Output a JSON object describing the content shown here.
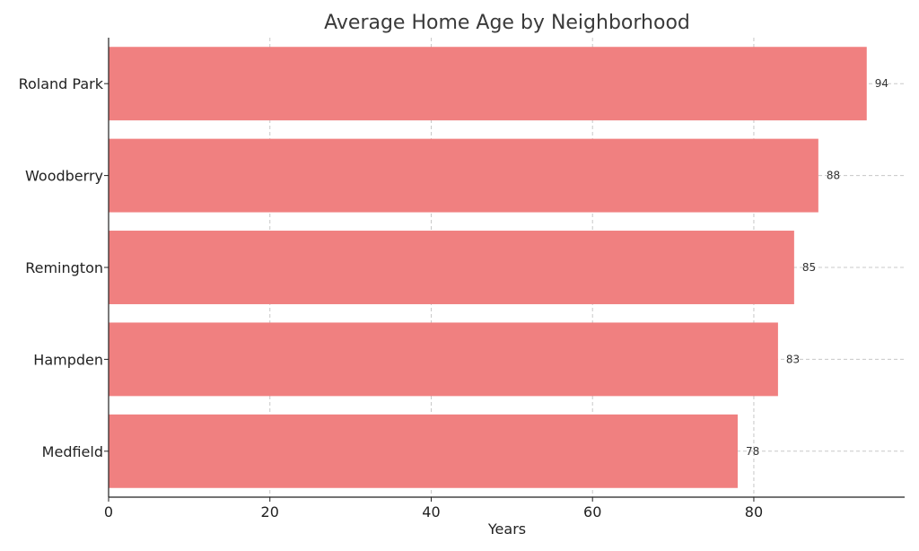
{
  "chart_data": {
    "type": "bar",
    "orientation": "horizontal",
    "title": "Average Home Age by Neighborhood",
    "xlabel": "Years",
    "ylabel": "",
    "categories": [
      "Roland Park",
      "Woodberry",
      "Remington",
      "Hampden",
      "Medfield"
    ],
    "values": [
      94,
      88,
      85,
      83,
      78
    ],
    "xlim": [
      0,
      98.7
    ],
    "xticks": [
      0,
      20,
      40,
      60,
      80
    ],
    "grid": true,
    "bar_color": "#f08080",
    "data_labels": true
  }
}
